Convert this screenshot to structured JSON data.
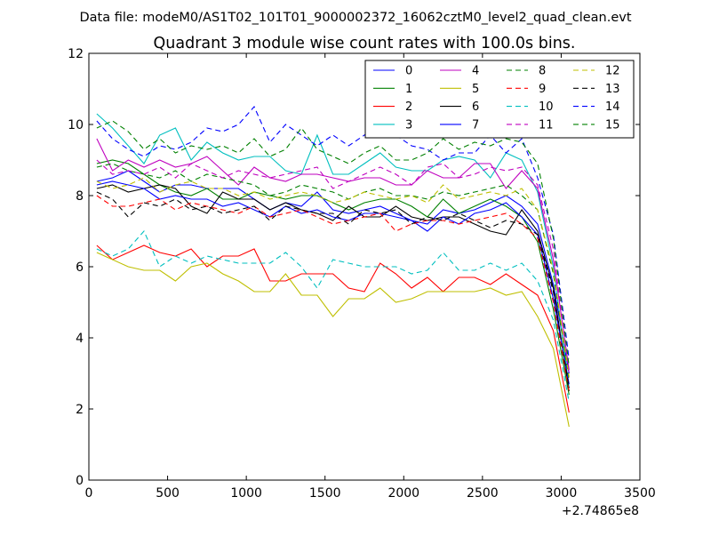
{
  "figure": {
    "suptitle": "Data file: modeM0/AS1T02_101T01_9000002372_16062cztM0_level2_quad_clean.evt"
  },
  "chart_data": {
    "type": "line",
    "title": "Quadrant 3 module wise count rates with 100.0s bins.",
    "xlabel": "",
    "ylabel": "",
    "x_offset_label": "+2.74865e8",
    "xlim": [
      0,
      3500
    ],
    "ylim": [
      0,
      12
    ],
    "xticks": [
      0,
      500,
      1000,
      1500,
      2000,
      2500,
      3000,
      3500
    ],
    "yticks": [
      0,
      2,
      4,
      6,
      8,
      10,
      12
    ],
    "grid": false,
    "legend_position": "top-right",
    "legend_columns": 4,
    "x": [
      50,
      150,
      250,
      350,
      450,
      550,
      650,
      750,
      850,
      950,
      1050,
      1150,
      1250,
      1350,
      1450,
      1550,
      1650,
      1750,
      1850,
      1950,
      2050,
      2150,
      2250,
      2350,
      2450,
      2550,
      2650,
      2750,
      2850,
      2950,
      3050
    ],
    "series": [
      {
        "name": "0",
        "color": "#0000ff",
        "dash": "solid",
        "values": [
          8.4,
          8.5,
          8.7,
          8.4,
          8.1,
          8.3,
          8.3,
          8.2,
          8.2,
          8.2,
          7.9,
          7.6,
          7.8,
          7.7,
          8.1,
          7.6,
          7.5,
          7.6,
          7.7,
          7.5,
          7.3,
          7.2,
          7.6,
          7.5,
          7.6,
          7.8,
          8.0,
          7.7,
          7.2,
          5.5,
          3.0
        ]
      },
      {
        "name": "1",
        "color": "#008000",
        "dash": "solid",
        "values": [
          8.9,
          9.0,
          8.9,
          8.6,
          8.3,
          8.1,
          8.0,
          8.2,
          7.9,
          7.9,
          8.1,
          8.0,
          7.9,
          8.0,
          8.0,
          7.8,
          7.6,
          7.8,
          7.9,
          7.9,
          7.7,
          7.4,
          7.9,
          7.5,
          7.7,
          7.9,
          7.7,
          7.4,
          6.7,
          4.8,
          2.4
        ]
      },
      {
        "name": "2",
        "color": "#ff0000",
        "dash": "solid",
        "values": [
          6.6,
          6.2,
          6.4,
          6.6,
          6.4,
          6.3,
          6.5,
          6.0,
          6.3,
          6.3,
          6.5,
          5.6,
          5.6,
          5.8,
          5.8,
          5.8,
          5.4,
          5.3,
          6.1,
          5.8,
          5.4,
          5.7,
          5.3,
          5.7,
          5.7,
          5.5,
          5.8,
          5.5,
          5.2,
          4.2,
          1.9
        ]
      },
      {
        "name": "3",
        "color": "#00bfbf",
        "dash": "solid",
        "values": [
          10.3,
          9.9,
          9.4,
          8.9,
          9.7,
          9.9,
          9.0,
          9.5,
          9.2,
          9.0,
          9.1,
          9.1,
          8.7,
          8.6,
          9.7,
          8.6,
          8.6,
          8.9,
          9.2,
          8.8,
          8.7,
          8.7,
          9.0,
          9.1,
          9.0,
          8.5,
          9.2,
          9.0,
          8.1,
          6.0,
          2.6
        ]
      },
      {
        "name": "4",
        "color": "#bf00bf",
        "dash": "solid",
        "values": [
          9.6,
          8.7,
          9.0,
          8.8,
          9.0,
          8.8,
          8.9,
          9.1,
          8.7,
          8.3,
          8.8,
          8.5,
          8.4,
          8.6,
          8.6,
          8.5,
          8.4,
          8.5,
          8.5,
          8.3,
          8.3,
          8.7,
          8.5,
          8.5,
          8.9,
          8.9,
          8.2,
          8.7,
          8.2,
          6.2,
          3.1
        ]
      },
      {
        "name": "5",
        "color": "#bfbf00",
        "dash": "solid",
        "values": [
          6.4,
          6.2,
          6.0,
          5.9,
          5.9,
          5.6,
          6.0,
          6.1,
          5.8,
          5.6,
          5.3,
          5.3,
          5.8,
          5.2,
          5.2,
          4.6,
          5.1,
          5.1,
          5.4,
          5.0,
          5.1,
          5.3,
          5.3,
          5.3,
          5.3,
          5.4,
          5.2,
          5.3,
          4.6,
          3.7,
          1.5
        ]
      },
      {
        "name": "6",
        "color": "#000000",
        "dash": "solid",
        "values": [
          8.2,
          8.3,
          8.1,
          8.2,
          8.3,
          8.2,
          7.7,
          7.5,
          8.1,
          7.9,
          7.9,
          7.6,
          7.8,
          7.6,
          7.5,
          7.3,
          7.7,
          7.4,
          7.4,
          7.7,
          7.4,
          7.3,
          7.4,
          7.4,
          7.2,
          7.0,
          6.9,
          7.6,
          7.0,
          5.4,
          2.5
        ]
      },
      {
        "name": "7",
        "color": "#0000ff",
        "dash": "solid",
        "values": [
          8.3,
          8.4,
          8.3,
          8.2,
          7.9,
          8.0,
          7.9,
          7.9,
          7.7,
          7.8,
          7.6,
          7.4,
          7.7,
          7.5,
          7.6,
          7.4,
          7.3,
          7.5,
          7.5,
          7.4,
          7.3,
          7.0,
          7.4,
          7.2,
          7.5,
          7.6,
          7.8,
          7.4,
          6.9,
          5.1,
          2.7
        ]
      },
      {
        "name": "8",
        "color": "#008000",
        "dash": "dashed",
        "values": [
          8.8,
          8.9,
          8.7,
          8.6,
          8.5,
          8.7,
          8.4,
          8.6,
          8.5,
          8.4,
          8.3,
          8.0,
          8.1,
          8.3,
          8.2,
          8.1,
          7.9,
          8.1,
          8.2,
          8.0,
          8.0,
          7.9,
          8.1,
          8.0,
          8.1,
          8.2,
          8.3,
          8.0,
          7.6,
          5.8,
          2.8
        ]
      },
      {
        "name": "9",
        "color": "#ff0000",
        "dash": "dashed",
        "values": [
          8.0,
          7.7,
          7.7,
          7.8,
          7.9,
          7.6,
          7.8,
          7.7,
          7.6,
          7.5,
          7.7,
          7.4,
          7.5,
          7.6,
          7.4,
          7.2,
          7.3,
          7.4,
          7.5,
          7.0,
          7.2,
          7.3,
          7.3,
          7.2,
          7.3,
          7.4,
          7.5,
          7.2,
          6.8,
          5.0,
          2.5
        ]
      },
      {
        "name": "10",
        "color": "#00bfbf",
        "dash": "dashed",
        "values": [
          6.5,
          6.3,
          6.5,
          7.0,
          6.0,
          6.3,
          6.1,
          6.3,
          6.2,
          6.1,
          6.1,
          6.1,
          6.4,
          6.0,
          5.4,
          6.2,
          6.1,
          6.0,
          6.0,
          6.0,
          5.8,
          5.9,
          6.4,
          5.9,
          5.9,
          6.1,
          5.9,
          6.1,
          5.6,
          4.5,
          2.2
        ]
      },
      {
        "name": "11",
        "color": "#bf00bf",
        "dash": "dashed",
        "values": [
          9.0,
          8.6,
          8.7,
          8.6,
          8.8,
          8.5,
          8.9,
          8.7,
          8.5,
          8.7,
          8.6,
          8.5,
          8.6,
          8.7,
          8.8,
          8.2,
          8.4,
          8.6,
          8.8,
          8.6,
          8.3,
          8.8,
          8.9,
          8.5,
          8.6,
          8.8,
          8.7,
          8.8,
          8.3,
          6.5,
          3.0
        ]
      },
      {
        "name": "12",
        "color": "#bfbf00",
        "dash": "dashed",
        "values": [
          8.4,
          8.2,
          8.3,
          8.5,
          8.1,
          8.3,
          8.4,
          8.2,
          8.2,
          8.0,
          8.1,
          7.9,
          8.0,
          8.1,
          8.0,
          7.8,
          7.9,
          8.1,
          8.0,
          7.9,
          8.0,
          7.8,
          8.3,
          7.9,
          8.0,
          8.1,
          8.0,
          8.2,
          7.6,
          5.9,
          2.9
        ]
      },
      {
        "name": "13",
        "color": "#000000",
        "dash": "dashed",
        "values": [
          8.1,
          7.9,
          7.4,
          7.8,
          7.7,
          7.9,
          7.6,
          7.7,
          7.5,
          7.6,
          7.7,
          7.3,
          7.7,
          7.6,
          7.5,
          7.5,
          7.2,
          7.6,
          7.5,
          7.6,
          7.2,
          7.4,
          7.3,
          7.5,
          7.3,
          7.1,
          7.3,
          7.2,
          6.9,
          5.3,
          2.6
        ]
      },
      {
        "name": "14",
        "color": "#0000ff",
        "dash": "dashed",
        "values": [
          10.1,
          9.6,
          9.3,
          9.1,
          9.4,
          9.3,
          9.5,
          9.9,
          9.8,
          10.0,
          10.5,
          9.5,
          10.0,
          9.7,
          9.4,
          9.7,
          9.4,
          9.7,
          10.1,
          9.7,
          9.4,
          9.3,
          9.0,
          9.2,
          9.2,
          9.7,
          9.2,
          9.6,
          8.5,
          6.9,
          3.4
        ]
      },
      {
        "name": "15",
        "color": "#008000",
        "dash": "dashed",
        "values": [
          9.9,
          10.1,
          9.8,
          9.3,
          9.6,
          9.2,
          9.4,
          9.3,
          9.4,
          9.2,
          9.6,
          9.1,
          9.3,
          9.9,
          9.3,
          9.1,
          8.9,
          9.2,
          9.4,
          9.0,
          9.0,
          9.2,
          9.6,
          9.3,
          9.5,
          9.4,
          9.6,
          9.5,
          8.9,
          6.8,
          3.2
        ]
      }
    ]
  }
}
